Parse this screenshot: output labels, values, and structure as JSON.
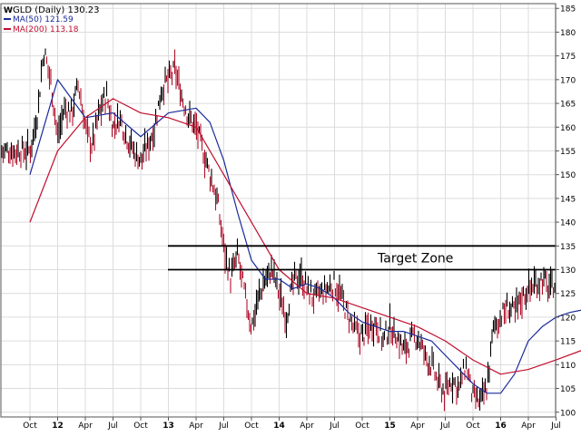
{
  "chart_data": {
    "type": "line",
    "title": "GLD (Daily) 130.23",
    "title_prefix": "W",
    "x_tick_labels": [
      "Oct",
      "12",
      "Apr",
      "Jul",
      "Oct",
      "13",
      "Apr",
      "Jul",
      "Oct",
      "14",
      "Apr",
      "Jul",
      "Oct",
      "15",
      "Apr",
      "Jul",
      "Oct",
      "16",
      "Apr",
      "Jul"
    ],
    "y_ticks": [
      100,
      105,
      110,
      115,
      120,
      125,
      130,
      135,
      140,
      145,
      150,
      155,
      160,
      165,
      170,
      175,
      180,
      185
    ],
    "ylim": [
      99,
      186
    ],
    "annotation": "Target Zone",
    "target_zone": [
      130,
      135
    ],
    "series": [
      {
        "name": "GLD",
        "legend": "",
        "color": "#000000",
        "down_color": "#b0112c",
        "x": [
          0,
          0.25,
          0.5,
          0.75,
          1,
          1.25,
          1.5,
          1.75,
          2,
          2.25,
          2.5,
          2.75,
          3,
          3.25,
          3.5,
          3.75,
          4,
          4.25,
          4.5,
          4.75,
          5,
          5.25,
          5.5,
          5.75,
          6,
          6.25,
          6.5,
          6.75,
          7,
          7.25,
          7.5,
          7.75,
          8,
          8.25,
          8.5,
          8.75,
          9,
          9.25,
          9.5,
          9.75,
          10,
          10.25,
          10.5,
          10.75,
          11,
          11.25,
          11.5,
          11.75,
          12,
          12.25,
          12.5,
          12.75,
          13,
          13.25,
          13.5,
          13.75,
          14,
          14.25,
          14.5,
          14.75,
          15,
          15.25,
          15.5,
          15.75,
          16,
          16.25,
          16.5,
          16.75,
          17,
          17.25,
          17.5,
          17.75,
          18,
          18.25,
          18.5,
          18.75,
          19,
          19.25,
          19.5,
          19.75,
          20
        ],
        "values": [
          155,
          162,
          176,
          170,
          158,
          164,
          163,
          169,
          160,
          156,
          163,
          167,
          160,
          162,
          158,
          155,
          153,
          156,
          160,
          168,
          170,
          172,
          166,
          162,
          160,
          155,
          150,
          145,
          135,
          128,
          133,
          125,
          118,
          124,
          128,
          130,
          125,
          120,
          127,
          129,
          126,
          124,
          125,
          126,
          127,
          124,
          120,
          117,
          116,
          118,
          119,
          115,
          118,
          116,
          113,
          115,
          116,
          112,
          110,
          106,
          104,
          107,
          105,
          110,
          103,
          102,
          105,
          118,
          120,
          122,
          121,
          124,
          126,
          127,
          128,
          126,
          127,
          129,
          130,
          130,
          130.23
        ]
      },
      {
        "name": "MA(50)",
        "legend": "MA(50) 121.59",
        "color": "#1a2a9a",
        "x": [
          0,
          1,
          2,
          3,
          4,
          5,
          6,
          6.5,
          7,
          7.5,
          8,
          8.5,
          9,
          9.5,
          10,
          10.5,
          11,
          11.5,
          12,
          12.5,
          13,
          13.5,
          14,
          14.5,
          15,
          15.5,
          16,
          16.5,
          17,
          17.5,
          18,
          18.5,
          19,
          19.5,
          20
        ],
        "values": [
          150,
          170,
          162,
          163,
          158,
          163,
          164,
          161,
          153,
          142,
          132,
          128,
          128,
          126,
          127,
          126,
          124,
          121,
          119,
          118,
          117,
          117,
          116,
          115,
          112,
          109,
          106,
          104,
          104,
          108,
          115,
          118,
          120,
          121,
          121.59
        ]
      },
      {
        "name": "MA(200)",
        "legend": "MA(200) 113.18",
        "color": "#c00e2e",
        "x": [
          0,
          1,
          2,
          3,
          4,
          5,
          6,
          7,
          8,
          9,
          10,
          11,
          12,
          13,
          14,
          15,
          16,
          17,
          18,
          19,
          20
        ],
        "values": [
          140,
          155,
          162,
          166,
          163,
          162,
          160,
          150,
          140,
          130,
          125,
          124,
          122,
          120,
          118,
          115,
          111,
          108,
          109,
          111,
          113.18
        ]
      }
    ]
  }
}
